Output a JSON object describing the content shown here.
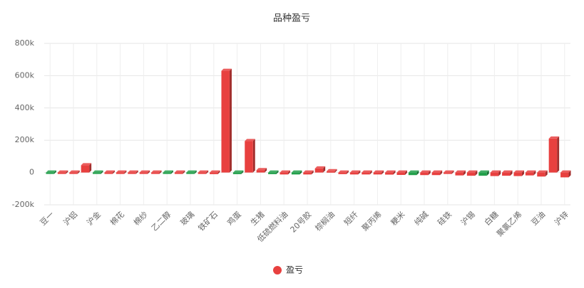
{
  "chart_data": {
    "type": "bar3d",
    "title": "品种盈亏",
    "categories": [
      "豆一",
      null,
      "沪铝",
      null,
      "沪金",
      null,
      "棉花",
      null,
      "棉纱",
      null,
      "乙二醇",
      null,
      "玻璃",
      null,
      "铁矿石",
      null,
      "鸡蛋",
      null,
      "生猪",
      null,
      "低硫燃料油",
      null,
      "20号胶",
      null,
      "棕榈油",
      null,
      "短纤",
      null,
      "聚丙烯",
      null,
      "粳米",
      null,
      "纯碱",
      null,
      "硅铁",
      null,
      "沪锡",
      null,
      "白糖",
      null,
      "聚氯乙烯",
      null,
      "豆油",
      null,
      "沪锌"
    ],
    "series": [
      {
        "name": "盈亏",
        "color": "#e8403f",
        "values": [
          -3000,
          -3000,
          -3000,
          45000,
          -2000,
          -2000,
          -2000,
          -3000,
          -3000,
          -3000,
          -5000,
          -5000,
          -8000,
          -8000,
          -10000,
          630000,
          -10000,
          195000,
          15000,
          -10000,
          -12000,
          -12000,
          -12000,
          25000,
          8000,
          -10000,
          -12000,
          -12000,
          -12000,
          -13000,
          -15000,
          -16000,
          -16000,
          -16000,
          -5000,
          -18000,
          -20000,
          -20000,
          -22000,
          -20000,
          -22000,
          -18000,
          -25000,
          210000,
          -30000
        ],
        "colors": [
          "#22a04b",
          "#e8403f",
          "#e8403f",
          "#e8403f",
          "#22a04b",
          "#e8403f",
          "#e8403f",
          "#e8403f",
          "#e8403f",
          "#e8403f",
          "#22a04b",
          "#e8403f",
          "#22a04b",
          "#e8403f",
          "#e8403f",
          "#e8403f",
          "#22a04b",
          "#e8403f",
          "#e8403f",
          "#22a04b",
          "#e8403f",
          "#22a04b",
          "#e8403f",
          "#e8403f",
          "#e8403f",
          "#e8403f",
          "#e8403f",
          "#e8403f",
          "#e8403f",
          "#e8403f",
          "#e8403f",
          "#22a04b",
          "#e8403f",
          "#e8403f",
          "#e8403f",
          "#e8403f",
          "#e8403f",
          "#22a04b",
          "#e8403f",
          "#e8403f",
          "#e8403f",
          "#e8403f",
          "#e8403f",
          "#e8403f",
          "#e8403f"
        ]
      }
    ],
    "ylim": [
      -200000,
      800000
    ],
    "yticks": [
      {
        "value": -200000,
        "label": "-200k"
      },
      0,
      {
        "value": 200000,
        "label": "200k"
      },
      {
        "value": 400000,
        "label": "400k"
      },
      {
        "value": 600000,
        "label": "600k"
      },
      {
        "value": 800000,
        "label": "800k"
      }
    ],
    "grid": true
  }
}
